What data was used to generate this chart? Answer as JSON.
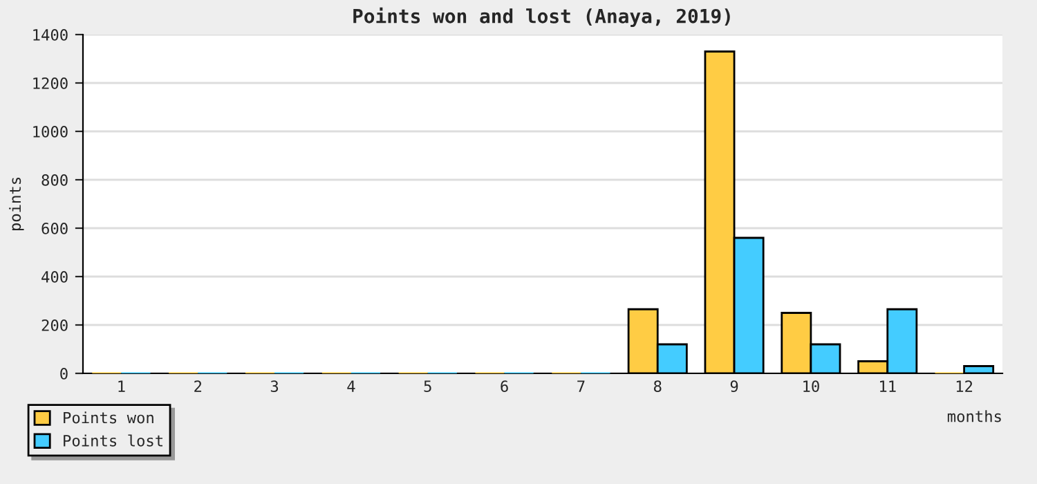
{
  "chart_data": {
    "type": "bar",
    "title": "Points won and lost (Anaya, 2019)",
    "xlabel": "months",
    "ylabel": "points",
    "categories": [
      "1",
      "2",
      "3",
      "4",
      "5",
      "6",
      "7",
      "8",
      "9",
      "10",
      "11",
      "12"
    ],
    "series": [
      {
        "name": "Points won",
        "color": "#ffcc44",
        "values": [
          0,
          0,
          0,
          0,
          0,
          0,
          0,
          265,
          1330,
          250,
          50,
          0
        ]
      },
      {
        "name": "Points lost",
        "color": "#44ccff",
        "values": [
          0,
          0,
          0,
          0,
          0,
          0,
          0,
          120,
          560,
          120,
          265,
          30
        ]
      }
    ],
    "ylim": [
      0,
      1400
    ],
    "yticks": [
      0,
      200,
      400,
      600,
      800,
      1000,
      1200,
      1400
    ],
    "grid": "y",
    "legend": "bottom left"
  }
}
